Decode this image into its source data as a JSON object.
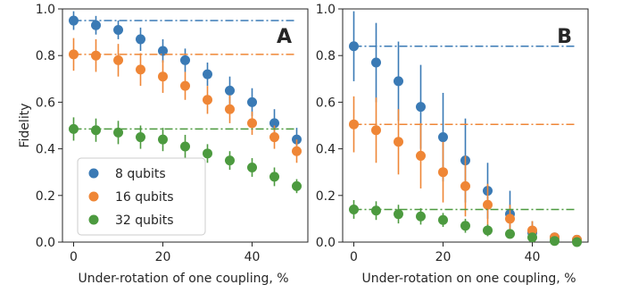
{
  "colors": {
    "8 qubits": "#3a7ab5",
    "16 qubits": "#ef8636",
    "32 qubits": "#4c9a3f",
    "frame": "#262626"
  },
  "chart_data": [
    {
      "type": "scatter",
      "panel": "A",
      "xlabel": "Under-rotation of one coupling, %",
      "ylabel": "Fidelity",
      "xlim": [
        -2.5,
        52.5
      ],
      "ylim": [
        0,
        1.0
      ],
      "xticks": [
        "0",
        "20",
        "40"
      ],
      "yticks": [
        "0.0",
        "0.2",
        "0.4",
        "0.6",
        "0.8",
        "1.0"
      ],
      "legend": {
        "position": "lower-left",
        "entries": [
          "8 qubits",
          "16 qubits",
          "32 qubits"
        ]
      },
      "x": [
        0,
        5,
        10,
        15,
        20,
        25,
        30,
        35,
        40,
        45,
        50
      ],
      "series": [
        {
          "name": "8 qubits",
          "reference_line": 0.95,
          "values": [
            0.95,
            0.93,
            0.91,
            0.87,
            0.82,
            0.78,
            0.72,
            0.65,
            0.6,
            0.51,
            0.44
          ],
          "errors": [
            0.04,
            0.04,
            0.04,
            0.05,
            0.05,
            0.05,
            0.05,
            0.06,
            0.06,
            0.06,
            0.05
          ]
        },
        {
          "name": "16 qubits",
          "reference_line": 0.805,
          "values": [
            0.805,
            0.8,
            0.78,
            0.74,
            0.71,
            0.67,
            0.61,
            0.57,
            0.51,
            0.45,
            0.39
          ],
          "errors": [
            0.07,
            0.07,
            0.07,
            0.07,
            0.07,
            0.06,
            0.06,
            0.06,
            0.05,
            0.05,
            0.05
          ]
        },
        {
          "name": "32 qubits",
          "reference_line": 0.485,
          "values": [
            0.485,
            0.48,
            0.47,
            0.45,
            0.44,
            0.41,
            0.38,
            0.35,
            0.32,
            0.28,
            0.24
          ],
          "errors": [
            0.05,
            0.05,
            0.05,
            0.05,
            0.05,
            0.05,
            0.04,
            0.04,
            0.04,
            0.04,
            0.03
          ]
        }
      ]
    },
    {
      "type": "scatter",
      "panel": "B",
      "xlabel": "Under-rotation on one coupling, %",
      "ylabel": "",
      "xlim": [
        -2.5,
        52.5
      ],
      "ylim": [
        0,
        1.0
      ],
      "xticks": [
        "0",
        "20",
        "40"
      ],
      "yticks": [
        "0.0",
        "0.2",
        "0.4",
        "0.6",
        "0.8",
        "1.0"
      ],
      "x": [
        0,
        5,
        10,
        15,
        20,
        25,
        30,
        35,
        40,
        45,
        50
      ],
      "series": [
        {
          "name": "8 qubits",
          "reference_line": 0.84,
          "values": [
            0.84,
            0.77,
            0.69,
            0.58,
            0.45,
            0.35,
            0.22,
            0.12,
            0.04,
            0.02,
            0.01
          ],
          "errors": [
            0.15,
            0.17,
            0.17,
            0.18,
            0.19,
            0.18,
            0.12,
            0.1,
            0.05,
            0.02,
            0.01
          ]
        },
        {
          "name": "16 qubits",
          "reference_line": 0.505,
          "values": [
            0.505,
            0.48,
            0.43,
            0.37,
            0.3,
            0.24,
            0.16,
            0.1,
            0.05,
            0.02,
            0.01
          ],
          "errors": [
            0.12,
            0.14,
            0.14,
            0.14,
            0.13,
            0.13,
            0.09,
            0.06,
            0.04,
            0.02,
            0.01
          ]
        },
        {
          "name": "32 qubits",
          "reference_line": 0.14,
          "values": [
            0.14,
            0.135,
            0.12,
            0.11,
            0.095,
            0.07,
            0.05,
            0.035,
            0.02,
            0.005,
            0.0
          ],
          "errors": [
            0.04,
            0.04,
            0.04,
            0.035,
            0.03,
            0.03,
            0.025,
            0.02,
            0.015,
            0.01,
            0.005
          ]
        }
      ]
    }
  ]
}
